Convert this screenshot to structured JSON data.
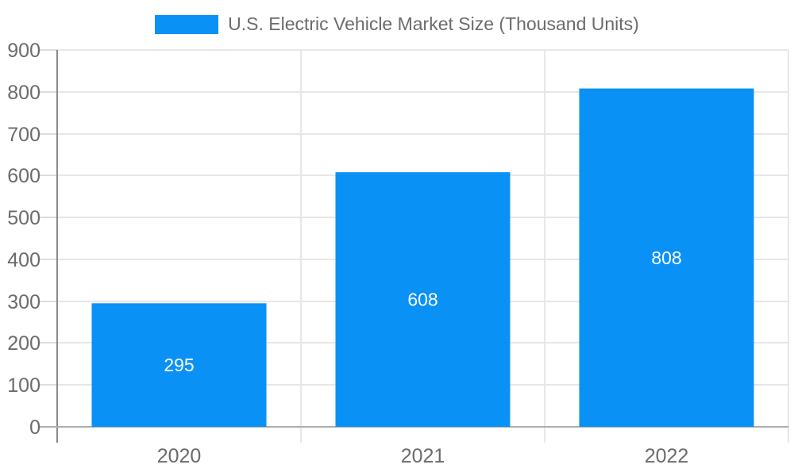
{
  "legend": {
    "label": "U.S. Electric Vehicle Market Size (Thousand Units)"
  },
  "chart_data": {
    "type": "bar",
    "title": "U.S. Electric Vehicle Market Size (Thousand Units)",
    "series_name": "U.S. Electric Vehicle Market Size (Thousand Units)",
    "categories": [
      "2020",
      "2021",
      "2022"
    ],
    "values": [
      295,
      608,
      808
    ],
    "value_labels": [
      "295",
      "608",
      "808"
    ],
    "xlabel": "",
    "ylabel": "",
    "ylim": [
      0,
      900
    ],
    "yticks": [
      0,
      100,
      200,
      300,
      400,
      500,
      600,
      700,
      800,
      900
    ],
    "grid": true,
    "legend_position": "top",
    "colors": {
      "bar": "#0a91f5",
      "value_label_text": "#ffffff",
      "axis_text": "#6b6b6b",
      "gridline": "#e7e7e7",
      "tick": "#dcdcdc",
      "y_axis_line": "#8a8a8a",
      "baseline": "#adadad",
      "background": "#ffffff"
    }
  }
}
